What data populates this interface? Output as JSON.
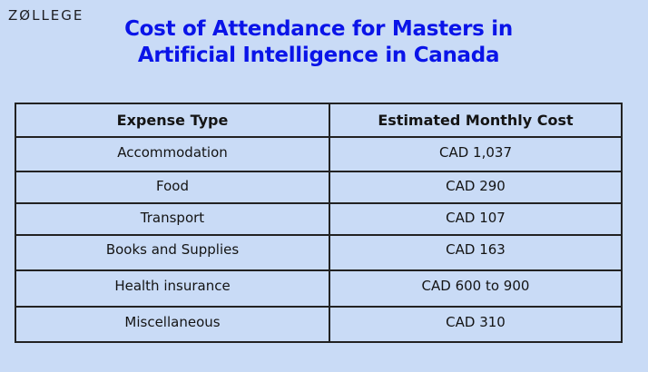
{
  "brand": {
    "logo_text": "ZØLLEGE"
  },
  "header": {
    "title_line1": "Cost of Attendance for Masters in",
    "title_line2": "Artificial Intelligence in Canada"
  },
  "table": {
    "columns": [
      "Expense Type",
      "Estimated Monthly Cost"
    ],
    "rows": [
      {
        "expense": "Accommodation",
        "cost": "CAD 1,037"
      },
      {
        "expense": "Food",
        "cost": "CAD 290"
      },
      {
        "expense": "Transport",
        "cost": "CAD 107"
      },
      {
        "expense": "Books and Supplies",
        "cost": "CAD 163"
      },
      {
        "expense": "Health insurance",
        "cost": "CAD 600 to 900"
      },
      {
        "expense": "Miscellaneous",
        "cost": "CAD 310"
      }
    ]
  },
  "colors": {
    "background": "#c9dbf6",
    "title": "#0a14e8",
    "border": "#222222"
  }
}
